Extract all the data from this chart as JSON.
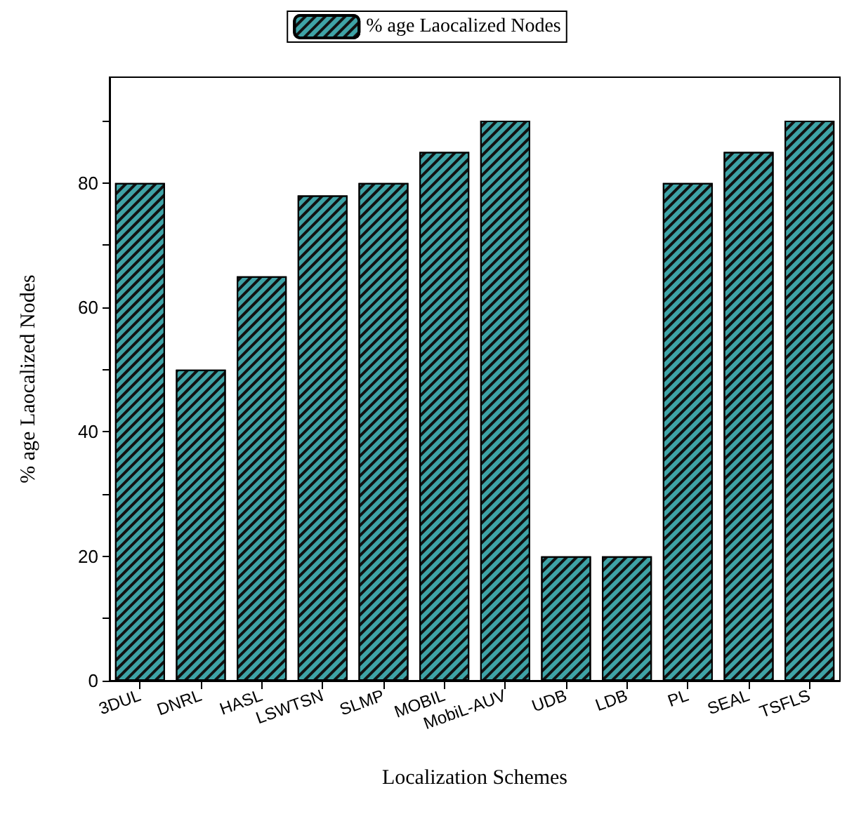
{
  "chart_data": {
    "type": "bar",
    "xlabel": "Localization Schemes",
    "ylabel": "% age Laocalized Nodes",
    "categories": [
      "3DUL",
      "DNRL",
      "HASL",
      "LSWTSN",
      "SLMP",
      "MOBIL",
      "MobiL-AUV",
      "UDB",
      "LDB",
      "PL",
      "SEAL",
      "TSFLS"
    ],
    "series": [
      {
        "name": "% age Laocalized Nodes",
        "color": "#3fa3a6",
        "values": [
          80,
          50,
          65,
          78,
          80,
          85,
          90,
          20,
          20,
          80,
          85,
          90
        ]
      }
    ],
    "ylim": [
      0,
      97
    ],
    "yticks": [
      0,
      {
        "value": 10,
        "label": null
      },
      20,
      {
        "value": 30,
        "label": null
      },
      40,
      {
        "value": 50,
        "label": null
      },
      60,
      {
        "value": 70,
        "label": null
      },
      80,
      {
        "value": 90,
        "label": null
      }
    ],
    "grid": false,
    "legend": "top"
  }
}
